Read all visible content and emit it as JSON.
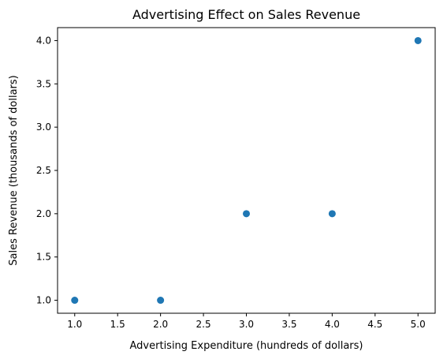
{
  "chart_data": {
    "type": "scatter",
    "title": "Advertising Effect on Sales Revenue",
    "xlabel": "Advertising Expenditure (hundreds of dollars)",
    "ylabel": "Sales Revenue (thousands of dollars)",
    "x": [
      1,
      2,
      3,
      4,
      5
    ],
    "y": [
      1,
      1,
      2,
      2,
      4
    ],
    "xlim": [
      0.8,
      5.2
    ],
    "ylim": [
      0.85,
      4.15
    ],
    "xticks": [
      1.0,
      1.5,
      2.0,
      2.5,
      3.0,
      3.5,
      4.0,
      4.5,
      5.0
    ],
    "yticks": [
      1.0,
      1.5,
      2.0,
      2.5,
      3.0,
      3.5,
      4.0
    ],
    "xtick_labels": [
      "1.0",
      "1.5",
      "2.0",
      "2.5",
      "3.0",
      "3.5",
      "4.0",
      "4.5",
      "5.0"
    ],
    "ytick_labels": [
      "1.0",
      "1.5",
      "2.0",
      "2.5",
      "3.0",
      "3.5",
      "4.0"
    ],
    "grid": false,
    "marker_color": "#1f77b4"
  }
}
